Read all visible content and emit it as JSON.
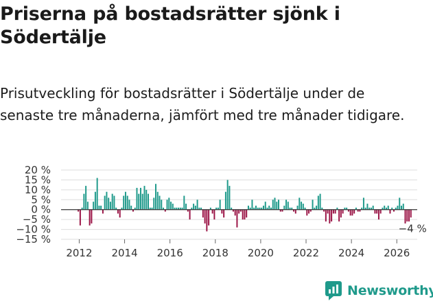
{
  "title": "Priserna på bostadsrätter sjönk i Södertälje",
  "subtitle": "Prisutveckling för bostadsrätter i Södertälje under de senaste tre månaderna, jämfört med tre månader tidigare.",
  "brand": {
    "name": "Newsworthy",
    "icon": "newsworthy-logo-icon"
  },
  "colors": {
    "positive": "#1f9a8b",
    "negative": "#9b1446",
    "zero_line": "#333333",
    "grid": "#dddddd"
  },
  "chart_data": {
    "type": "bar",
    "title": "Priserna på bostadsrätter sjönk i Södertälje",
    "xlabel": "",
    "ylabel": "",
    "unit": "%",
    "ylim": [
      -15,
      20
    ],
    "y_ticks": [
      20,
      15,
      10,
      5,
      0,
      -5,
      -10,
      -15
    ],
    "y_tick_labels": [
      "20 %",
      "15 %",
      "10 %",
      "5 %",
      "0 %",
      "−5 %",
      "−10 %",
      "−15 %"
    ],
    "x_ticks": [
      2012,
      2014,
      2016,
      2018,
      2020,
      2022,
      2024,
      2026
    ],
    "x_tick_labels": [
      "2012",
      "2014",
      "2016",
      "2018",
      "2020",
      "2022",
      "2024",
      "2026"
    ],
    "x_start": 2011.96,
    "x_step": 0.0833,
    "values": [
      -1,
      -8,
      1,
      8,
      12,
      4,
      -8,
      -7,
      4,
      9,
      16,
      2,
      2,
      -2,
      7,
      9,
      6,
      4,
      8,
      7,
      1,
      -2,
      -4,
      1,
      7,
      9,
      7,
      5,
      2,
      -1,
      1,
      11,
      8,
      11,
      8,
      12,
      10,
      8,
      1,
      1,
      6,
      13,
      9,
      7,
      5,
      1,
      -1,
      5,
      6,
      4,
      3,
      1,
      1,
      1,
      1,
      1,
      7,
      3,
      -1,
      -5,
      1,
      3,
      2,
      5,
      1,
      1,
      -4,
      -7,
      -11,
      -8,
      1,
      -2,
      -5,
      1,
      1,
      5,
      -2,
      -4,
      9,
      15,
      12,
      1,
      -1,
      -3,
      -9,
      -2,
      -1,
      -5,
      -5,
      -4,
      2,
      1,
      5,
      1,
      2,
      1,
      1,
      1,
      2,
      4,
      1,
      2,
      1,
      5,
      6,
      4,
      5,
      -1,
      -1,
      2,
      5,
      4,
      1,
      1,
      -1,
      -2,
      2,
      6,
      4,
      3,
      1,
      -3,
      -2,
      -1,
      5,
      1,
      2,
      7,
      8,
      1,
      -1,
      -6,
      -2,
      -7,
      -6,
      -2,
      -2,
      1,
      -6,
      -4,
      -2,
      1,
      1,
      -1,
      -3,
      -3,
      -2,
      1,
      -1,
      -1,
      1,
      6,
      1,
      3,
      1,
      1,
      2,
      -2,
      -2,
      -5,
      -2,
      1,
      2,
      1,
      2,
      -2,
      1,
      -1,
      1,
      2,
      6,
      2,
      3,
      -7,
      -6,
      -6,
      -4
    ],
    "annotations": [
      {
        "text": "−4 %",
        "at": "last-value"
      }
    ]
  }
}
